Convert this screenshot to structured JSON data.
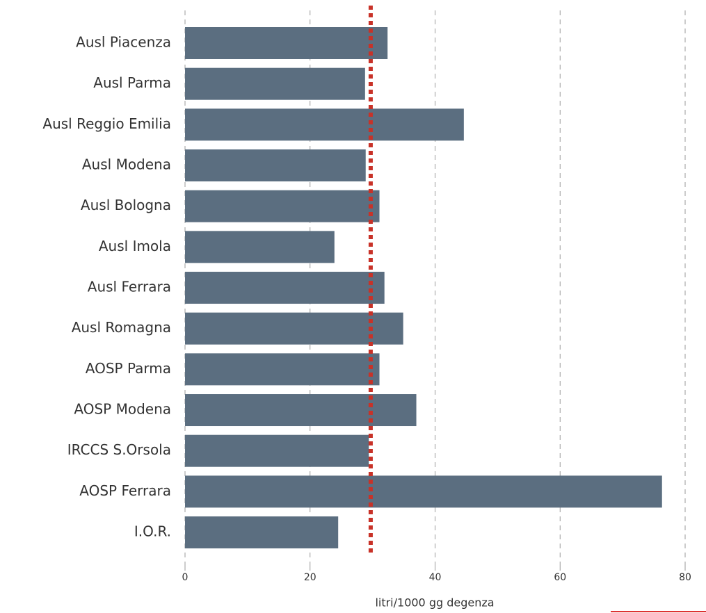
{
  "chart_data": {
    "type": "barh",
    "x_label": "litri/1000 gg degenza",
    "categories": [
      "Ausl Piacenza",
      "Ausl Parma",
      "Ausl Reggio Emilia",
      "Ausl Modena",
      "Ausl Bologna",
      "Ausl Imola",
      "Ausl Ferrara",
      "Ausl Romagna",
      "AOSP Parma",
      "AOSP Modena",
      "IRCCS S.Orsola",
      "AOSP Ferrara",
      "I.O.R."
    ],
    "values": [
      32.4,
      28.8,
      44.6,
      28.9,
      31.1,
      23.9,
      31.9,
      34.9,
      31.1,
      37.0,
      29.4,
      76.3,
      24.5
    ],
    "color": "#5b6e80",
    "reference": 29.7,
    "reference_color": "#c83228",
    "xlim": [
      0,
      80
    ],
    "xticks": [
      0,
      20,
      40,
      60,
      80
    ],
    "grid": true
  }
}
